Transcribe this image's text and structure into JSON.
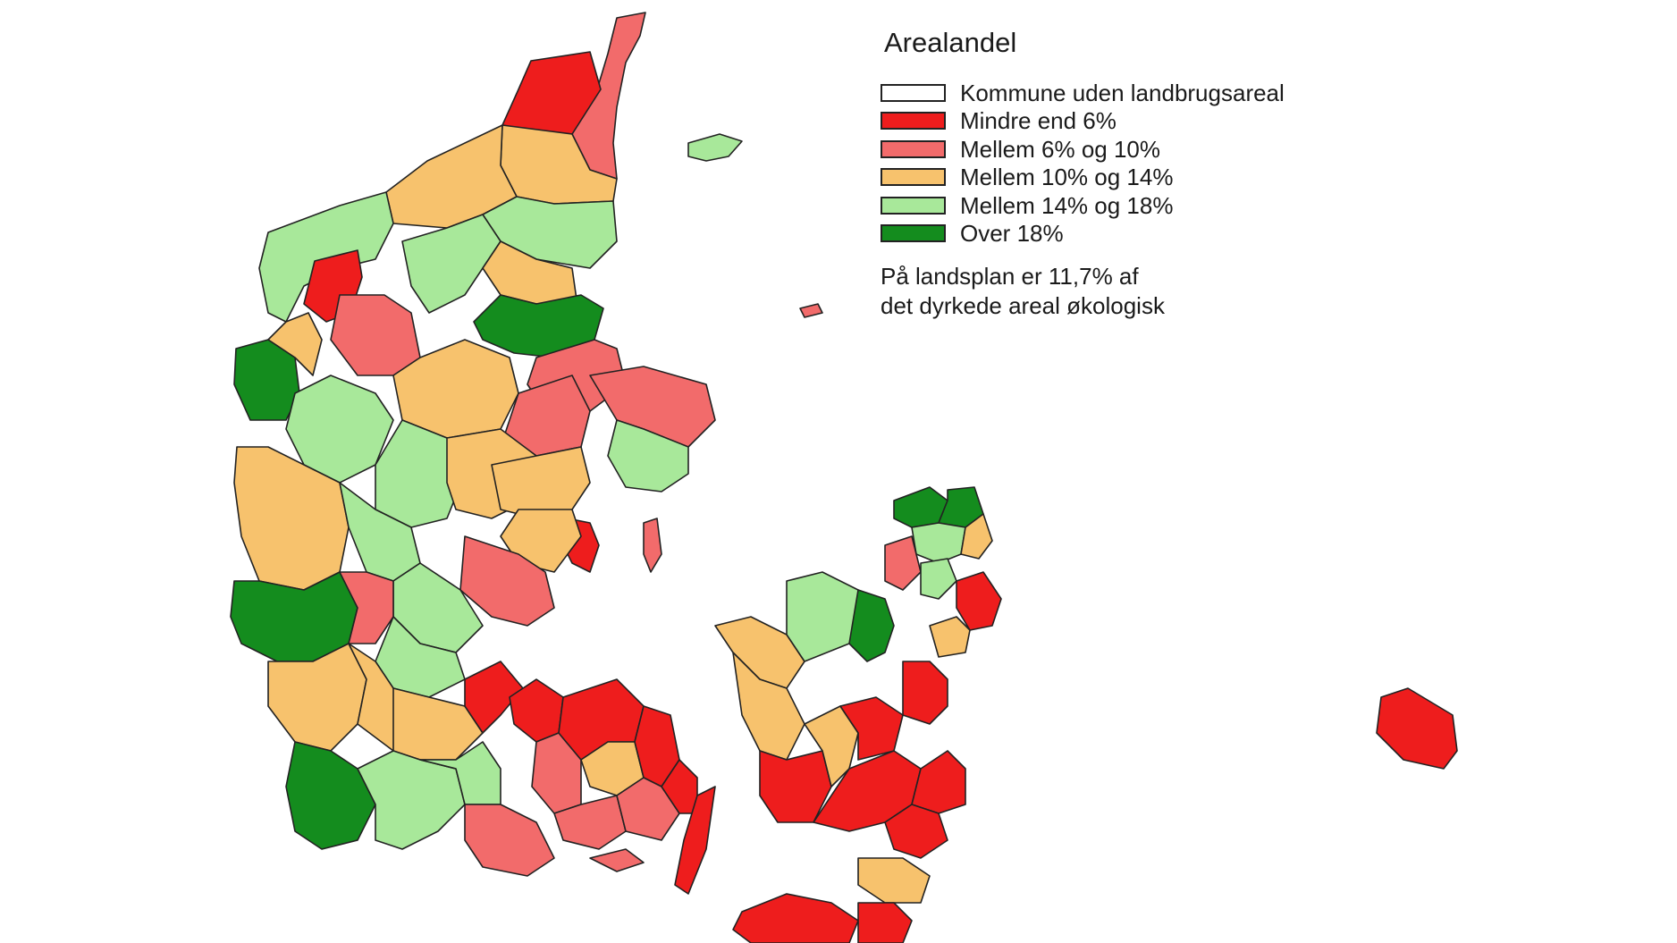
{
  "legend": {
    "title": "Arealandel",
    "items": [
      {
        "id": "none",
        "label": "Kommune uden landbrugsareal",
        "color": "#ffffff"
      },
      {
        "id": "lt6",
        "label": "Mindre end 6%",
        "color": "#ee1d1d"
      },
      {
        "id": "6to10",
        "label": "Mellem 6% og 10%",
        "color": "#f26b6b"
      },
      {
        "id": "10to14",
        "label": "Mellem 10% og 14%",
        "color": "#f7c26d"
      },
      {
        "id": "14to18",
        "label": "Mellem 14% og 18%",
        "color": "#a8e89a"
      },
      {
        "id": "gt18",
        "label": "Over 18%",
        "color": "#148c1e"
      }
    ],
    "note_line1": "På landsplan er 11,7% af",
    "note_line2": "det dyrkede areal økologisk"
  },
  "map": {
    "country": "Denmark",
    "outline_color": "#222222"
  }
}
